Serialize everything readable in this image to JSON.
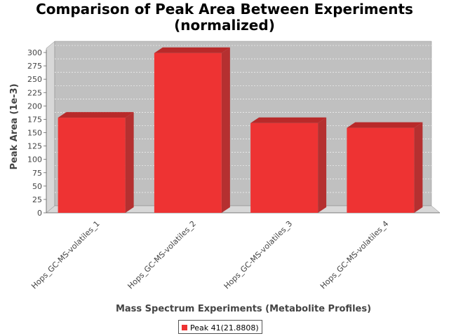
{
  "chart_data": {
    "type": "bar",
    "title_lines": [
      "Comparison of Peak Area Between Experiments",
      "(normalized)"
    ],
    "xlabel": "Mass Spectrum Experiments (Metabolite Profiles)",
    "ylabel": "Peak Area (1e-3)",
    "categories": [
      "Hops_GC-MS-volatiles_1",
      "Hops_GC-MS-volatiles_2",
      "Hops_GC-MS-volatiles_3",
      "Hops_GC-MS-volatiles_4"
    ],
    "series": [
      {
        "name": "Peak 41(21.8808)",
        "values": [
          178,
          299,
          168,
          159
        ],
        "color": "#ee3333"
      }
    ],
    "ylim": [
      0,
      300
    ],
    "yticks": [
      0,
      25,
      50,
      75,
      100,
      125,
      150,
      175,
      200,
      225,
      250,
      275,
      300
    ],
    "grid": true,
    "legend_position": "bottom",
    "three_d": true,
    "plot_background": "#c0c0c0"
  }
}
